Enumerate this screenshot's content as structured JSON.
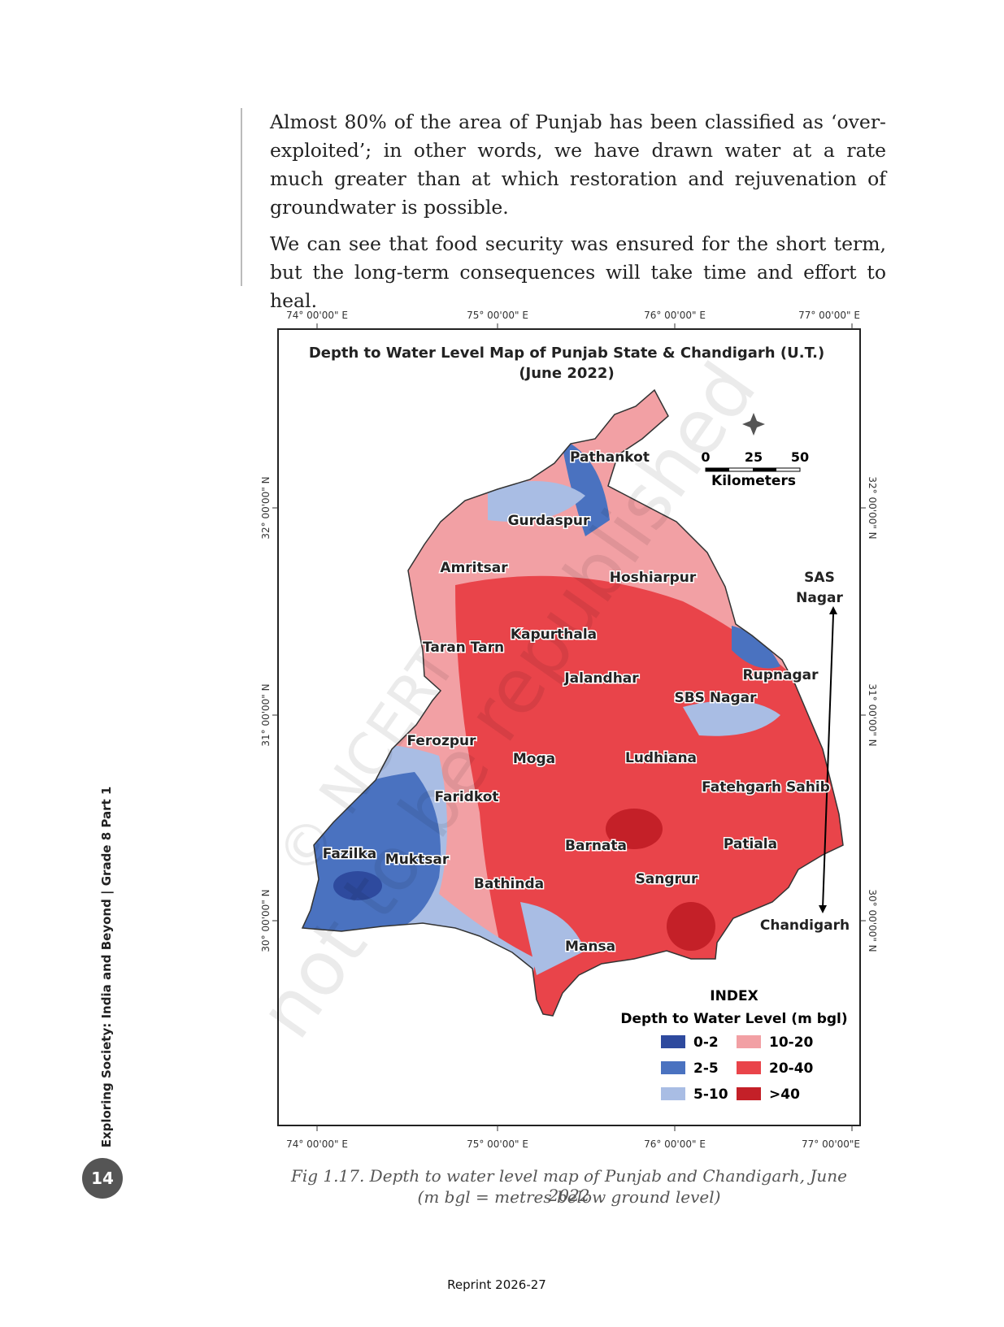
{
  "body": {
    "paragraphs": [
      "Almost 80% of the area of Punjab has been classified as ‘over-exploited’; in other words, we have drawn water at a rate much greater than at which restoration and rejuvenation of groundwater is possible.",
      "We can see that food security was ensured for the short term, but the long-term consequences will take time and effort to heal."
    ]
  },
  "map": {
    "title": [
      "Depth to Water Level Map of Punjab State & Chandigarh (U.T.)",
      "(June 2022)"
    ],
    "top_longitudes": [
      "74° 00'00\" E",
      "75° 00'00\" E",
      "76° 00'00\" E",
      "77° 00'00\" E"
    ],
    "bottom_longitudes": [
      "74° 00'00\" E",
      "75° 00'00\" E",
      "76° 00'00\" E",
      "77° 00'00\"E"
    ],
    "left_latitudes": [
      "32° 00'00\" N",
      "31° 00'00\" N",
      "30° 00'00\" N"
    ],
    "right_latitudes": [
      "32° 00'00\" N",
      "31° 00'00\" N",
      "30° 00'00\" N"
    ],
    "districts": [
      "Pathankot",
      "Gurdaspur",
      "Amritsar",
      "Hoshiarpur",
      "Taran Tarn",
      "Kapurthala",
      "Jalandhar",
      "Rupnagar",
      "SBS Nagar",
      "Ferozpur",
      "Moga",
      "Ludhiana",
      "Fatehgarh Sahib",
      "Faridkot",
      "Fazilka",
      "Muktsar",
      "Barnata",
      "Patiala",
      "Bathinda",
      "Sangrur",
      "Chandigarh",
      "Mansa"
    ],
    "sas_nagar": [
      "SAS",
      "Nagar"
    ],
    "scale": {
      "ticks": [
        "0",
        "25",
        "50"
      ],
      "unit": "Kilometers"
    },
    "legend": {
      "title": "INDEX",
      "subtitle": "Depth to Water Level (m bgl)",
      "items": [
        "0-2",
        "2-5",
        "5-10",
        "10-20",
        "20-40",
        ">40"
      ]
    },
    "watermark": [
      "© NCERT",
      "not to be republished"
    ]
  },
  "caption": [
    "Fig 1.17. Depth to water level map of Punjab and Chandigarh, June 2022",
    "(m bgl = metres below ground level)"
  ],
  "sidebar": "Exploring Society: India and Beyond | Grade 8 Part 1",
  "page_number": "14",
  "footer": "Reprint 2026-27"
}
